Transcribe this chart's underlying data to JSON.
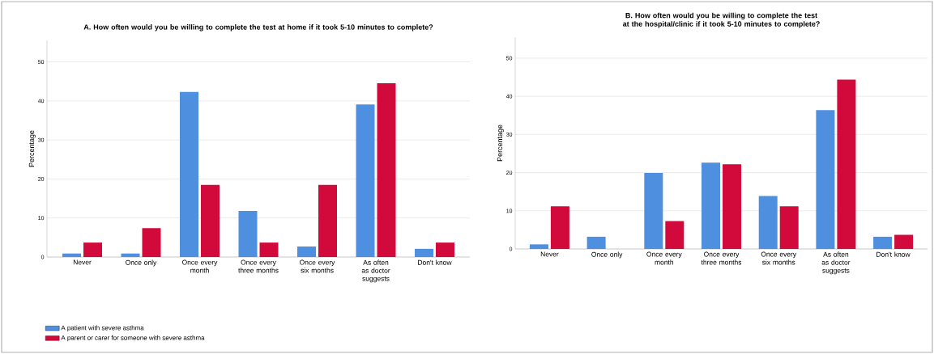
{
  "chart_data": [
    {
      "type": "bar",
      "title": "A. How often would you be willing to complete the test at home if it took 5-10 minutes to complete?",
      "ylabel": "Percentage",
      "categories": [
        "Never",
        "Once only",
        "Once every month",
        "Once every three months",
        "Once every six months",
        "As often as doctor suggests",
        "Don't know"
      ],
      "series": [
        {
          "name": "A patient with severe asthma",
          "color": "#4f8fe0",
          "values": [
            0.9,
            0.9,
            42.3,
            11.8,
            2.7,
            39.1,
            2.1
          ]
        },
        {
          "name": "A parent or carer for someone with severe asthma",
          "color": "#d20a3c",
          "values": [
            3.7,
            7.4,
            18.5,
            3.7,
            18.5,
            44.5,
            3.7
          ]
        }
      ],
      "ylim": [
        0,
        55.5
      ],
      "yticks": [
        0,
        10,
        20,
        30,
        40,
        50
      ],
      "grid": "y",
      "legend": "bottom left"
    },
    {
      "type": "bar",
      "title": "B. How often would you be willing to complete the test at the hospital/clinic if it took 5-10 minutes to complete?",
      "ylabel": "Percentage",
      "categories": [
        "Never",
        "Once only",
        "Once every month",
        "Once every three months",
        "Once every six months",
        "As often as doctor suggests",
        "Don't know"
      ],
      "series": [
        {
          "color": "#4f8fe0",
          "values": [
            1.2,
            3.2,
            19.9,
            22.6,
            13.9,
            36.4,
            3.2
          ]
        },
        {
          "color": "#d20a3c",
          "values": [
            11.2,
            0,
            7.3,
            22.2,
            11.2,
            44.4,
            3.7
          ]
        }
      ],
      "ylim": [
        0,
        55.5
      ],
      "yticks": [
        0,
        10,
        20,
        30,
        40,
        50
      ],
      "grid": "y"
    }
  ]
}
